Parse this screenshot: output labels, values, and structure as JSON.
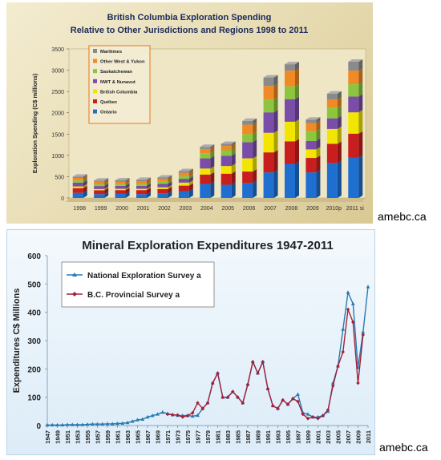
{
  "sources": {
    "top": "amebc.ca",
    "bottom": "amebc.ca"
  },
  "chart_data": [
    {
      "type": "bar",
      "stacked": true,
      "title": "British Columbia Exploration Spending",
      "subtitle": "Relative to Other Jurisdictions and Regions 1998 to 2011",
      "xlabel": "",
      "ylabel": "Exploration Spending (C$ millions)",
      "ylim": [
        0,
        3500
      ],
      "yticks": [
        0,
        500,
        1000,
        1500,
        2000,
        2500,
        3000,
        3500
      ],
      "grid": false,
      "legend_position": "top-left",
      "categories": [
        "1998",
        "1999",
        "2000",
        "2001",
        "2002",
        "2003",
        "2004",
        "2005",
        "2006",
        "2007",
        "2008",
        "2009",
        "2010p",
        "2011 si"
      ],
      "series": [
        {
          "name": "Ontario",
          "color": "#1f6fd1",
          "values": [
            120,
            90,
            95,
            90,
            110,
            160,
            330,
            310,
            350,
            600,
            800,
            600,
            820,
            950
          ]
        },
        {
          "name": "Québec",
          "color": "#c81e1e",
          "values": [
            110,
            90,
            90,
            95,
            100,
            130,
            220,
            260,
            270,
            470,
            530,
            340,
            450,
            560
          ]
        },
        {
          "name": "British Columbia",
          "color": "#f2e600",
          "values": [
            40,
            30,
            30,
            30,
            40,
            70,
            140,
            180,
            310,
            460,
            460,
            200,
            350,
            500
          ]
        },
        {
          "name": "NWT & Nunavut",
          "color": "#7a4ea8",
          "values": [
            90,
            70,
            70,
            70,
            80,
            90,
            240,
            240,
            380,
            480,
            530,
            200,
            250,
            370
          ]
        },
        {
          "name": "Saskatchewan",
          "color": "#8cc63f",
          "values": [
            50,
            40,
            40,
            40,
            50,
            60,
            120,
            130,
            190,
            300,
            300,
            230,
            250,
            290
          ]
        },
        {
          "name": "Other West & Yukon",
          "color": "#f08a24",
          "values": [
            60,
            60,
            60,
            70,
            70,
            80,
            100,
            100,
            220,
            320,
            370,
            190,
            190,
            320
          ]
        },
        {
          "name": "Maritimes",
          "color": "#8a8a8a",
          "values": [
            30,
            30,
            30,
            30,
            30,
            40,
            50,
            50,
            90,
            200,
            150,
            80,
            140,
            210
          ]
        }
      ]
    },
    {
      "type": "line",
      "title": "Mineral Exploration Expenditures 1947-2011",
      "xlabel": "",
      "ylabel": "Expenditures C$ Millions",
      "ylim": [
        0,
        600
      ],
      "yticks": [
        0,
        100,
        200,
        300,
        400,
        500,
        600
      ],
      "xlim": [
        1947,
        2011
      ],
      "xticks": [
        1947,
        1949,
        1951,
        1953,
        1955,
        1957,
        1959,
        1961,
        1963,
        1965,
        1967,
        1969,
        1971,
        1973,
        1975,
        1977,
        1979,
        1981,
        1983,
        1985,
        1987,
        1989,
        1991,
        1993,
        1995,
        1997,
        1999,
        2001,
        2003,
        2005,
        2007,
        2009,
        2011
      ],
      "grid": false,
      "legend_position": "top-left",
      "series": [
        {
          "name": "National Exploration Survey a",
          "color": "#2a7ab0",
          "marker": "triangle",
          "x": [
            1947,
            1948,
            1949,
            1950,
            1951,
            1952,
            1953,
            1954,
            1955,
            1956,
            1957,
            1958,
            1959,
            1960,
            1961,
            1962,
            1963,
            1964,
            1965,
            1966,
            1967,
            1968,
            1969,
            1970,
            1971,
            1972,
            1973,
            1974,
            1975,
            1976,
            1977,
            1978,
            1979,
            1980,
            1981,
            1982,
            1983,
            1984,
            1985,
            1986,
            1987,
            1988,
            1989,
            1990,
            1991,
            1992,
            1993,
            1994,
            1995,
            1996,
            1997,
            1998,
            1999,
            2000,
            2001,
            2002,
            2003,
            2004,
            2005,
            2006,
            2007,
            2008,
            2009,
            2010,
            2011
          ],
          "y": [
            2,
            2,
            2,
            2,
            3,
            3,
            3,
            3,
            4,
            5,
            5,
            5,
            6,
            6,
            7,
            8,
            10,
            15,
            20,
            22,
            30,
            35,
            40,
            47,
            42,
            38,
            36,
            35,
            35,
            33,
            36,
            60,
            80,
            150,
            185,
            100,
            100,
            120,
            100,
            80,
            145,
            225,
            185,
            225,
            130,
            70,
            60,
            90,
            75,
            95,
            110,
            45,
            40,
            30,
            30,
            35,
            50,
            150,
            210,
            340,
            470,
            430,
            205,
            330,
            490
          ]
        },
        {
          "name": "B.C. Provincial Survey a",
          "color": "#a3203a",
          "marker": "diamond",
          "x": [
            1971,
            1972,
            1973,
            1974,
            1975,
            1976,
            1977,
            1978,
            1979,
            1980,
            1981,
            1982,
            1983,
            1984,
            1985,
            1986,
            1987,
            1988,
            1989,
            1990,
            1991,
            1992,
            1993,
            1994,
            1995,
            1996,
            1997,
            1998,
            1999,
            2000,
            2001,
            2002,
            2003,
            2004,
            2005,
            2006,
            2007,
            2008,
            2009,
            2010
          ],
          "y": [
            40,
            38,
            37,
            30,
            35,
            45,
            80,
            60,
            80,
            150,
            185,
            100,
            100,
            120,
            100,
            80,
            145,
            225,
            185,
            225,
            130,
            70,
            60,
            90,
            75,
            95,
            85,
            40,
            25,
            30,
            25,
            35,
            55,
            140,
            210,
            260,
            410,
            365,
            150,
            320
          ]
        }
      ]
    }
  ]
}
